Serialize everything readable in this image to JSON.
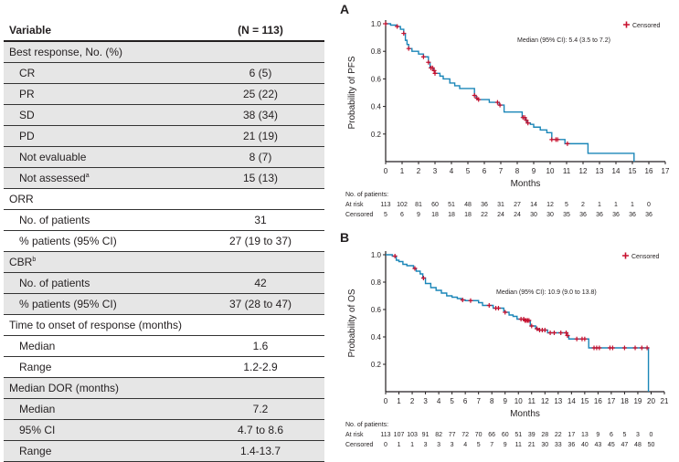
{
  "table": {
    "header": {
      "variable": "Variable",
      "n": "(N = 113)"
    },
    "sections": [
      {
        "label": "Best response, No. (%)",
        "shaded": true,
        "rows": [
          {
            "label": "CR",
            "value": "6 (5)"
          },
          {
            "label": "PR",
            "value": "25 (22)"
          },
          {
            "label": "SD",
            "value": "38 (34)"
          },
          {
            "label": "PD",
            "value": "21 (19)"
          },
          {
            "label": "Not evaluable",
            "value": "8 (7)"
          },
          {
            "label": "Not assessed",
            "sup": "a",
            "value": "15 (13)"
          }
        ]
      },
      {
        "label": "ORR",
        "shaded": false,
        "rows": [
          {
            "label": "No. of patients",
            "value": "31"
          },
          {
            "label": "% patients (95% CI)",
            "value": "27 (19 to 37)"
          }
        ]
      },
      {
        "label": "CBR",
        "sup": "b",
        "shaded": true,
        "rows": [
          {
            "label": "No. of patients",
            "value": "42"
          },
          {
            "label": "% patients (95% CI)",
            "value": "37 (28 to 47)"
          }
        ]
      },
      {
        "label": "Time to onset of response (months)",
        "shaded": false,
        "rows": [
          {
            "label": "Median",
            "value": "1.6"
          },
          {
            "label": "Range",
            "value": "1.2-2.9"
          }
        ]
      },
      {
        "label": "Median DOR (months)",
        "shaded": true,
        "rows": [
          {
            "label": "Median",
            "value": "7.2"
          },
          {
            "label": "95% CI",
            "value": "4.7 to 8.6"
          },
          {
            "label": "Range",
            "value": "1.4-13.7"
          }
        ]
      }
    ]
  },
  "chart_data": [
    {
      "panel": "A",
      "type": "line",
      "step": true,
      "ylabel": "Probability of PFS",
      "xlabel": "Months",
      "xlim": [
        0,
        17
      ],
      "ylim": [
        0,
        1.0
      ],
      "xticks": [
        0,
        1,
        2,
        3,
        4,
        5,
        6,
        7,
        8,
        9,
        10,
        11,
        12,
        13,
        14,
        15,
        16,
        17
      ],
      "yticks": [
        "0.2",
        "0.4",
        "0.6",
        "0.8",
        "1.0"
      ],
      "legend": "Censored",
      "legend_position": "top-right",
      "annotation": "Median (95% CI): 5.4 (3.5 to 7.2)",
      "line_color": "#1a86b8",
      "censor_color": "#c8102e",
      "steps": [
        [
          0,
          1
        ],
        [
          0.3,
          0.99
        ],
        [
          0.7,
          0.98
        ],
        [
          0.9,
          0.96
        ],
        [
          1.1,
          0.93
        ],
        [
          1.2,
          0.88
        ],
        [
          1.3,
          0.85
        ],
        [
          1.4,
          0.82
        ],
        [
          1.6,
          0.8
        ],
        [
          2,
          0.78
        ],
        [
          2.3,
          0.76
        ],
        [
          2.6,
          0.72
        ],
        [
          2.7,
          0.68
        ],
        [
          2.9,
          0.66
        ],
        [
          3,
          0.64
        ],
        [
          3.3,
          0.62
        ],
        [
          3.5,
          0.6
        ],
        [
          3.9,
          0.57
        ],
        [
          4.2,
          0.55
        ],
        [
          4.5,
          0.53
        ],
        [
          5.4,
          0.48
        ],
        [
          5.5,
          0.46
        ],
        [
          5.6,
          0.45
        ],
        [
          6.3,
          0.43
        ],
        [
          6.9,
          0.41
        ],
        [
          7.2,
          0.36
        ],
        [
          8.3,
          0.32
        ],
        [
          8.5,
          0.3
        ],
        [
          8.6,
          0.28
        ],
        [
          8.8,
          0.27
        ],
        [
          9,
          0.25
        ],
        [
          9.4,
          0.23
        ],
        [
          9.8,
          0.21
        ],
        [
          10.1,
          0.16
        ],
        [
          10.9,
          0.13
        ],
        [
          12.3,
          0.06
        ],
        [
          15.1,
          0
        ]
      ],
      "censored": [
        0,
        0.7,
        1.1,
        1.4,
        2.3,
        2.6,
        2.75,
        2.85,
        2.95,
        3.0,
        5.4,
        5.55,
        5.65,
        6.8,
        6.95,
        8.35,
        8.45,
        8.55,
        8.65,
        10.1,
        10.35,
        10.45,
        11.05
      ],
      "risk_label": "No. of patients:",
      "at_risk_label": "At risk",
      "censored_label": "Censored",
      "at_risk": [
        "113",
        "102",
        "81",
        "60",
        "51",
        "48",
        "36",
        "31",
        "27",
        "14",
        "12",
        "5",
        "2",
        "1",
        "1",
        "1",
        "0"
      ],
      "censored_counts": [
        "5",
        "6",
        "9",
        "18",
        "18",
        "18",
        "22",
        "24",
        "24",
        "30",
        "30",
        "35",
        "36",
        "36",
        "36",
        "36",
        "36"
      ]
    },
    {
      "panel": "B",
      "type": "line",
      "step": true,
      "ylabel": "Probability of OS",
      "xlabel": "Months",
      "xlim": [
        0,
        21
      ],
      "ylim": [
        0,
        1.0
      ],
      "xticks": [
        0,
        1,
        2,
        3,
        4,
        5,
        6,
        7,
        8,
        9,
        10,
        11,
        12,
        13,
        14,
        15,
        16,
        17,
        18,
        19,
        20,
        21
      ],
      "yticks": [
        "0.2",
        "0.4",
        "0.6",
        "0.8",
        "1.0"
      ],
      "legend": "Censored",
      "legend_position": "top-right",
      "annotation": "Median (95% CI): 10.9 (9.0 to 13.8)",
      "line_color": "#1a86b8",
      "censor_color": "#c8102e",
      "steps": [
        [
          0,
          1
        ],
        [
          0.5,
          0.99
        ],
        [
          0.8,
          0.96
        ],
        [
          1,
          0.95
        ],
        [
          1.3,
          0.93
        ],
        [
          1.6,
          0.92
        ],
        [
          2.1,
          0.9
        ],
        [
          2.3,
          0.88
        ],
        [
          2.6,
          0.86
        ],
        [
          2.8,
          0.83
        ],
        [
          3,
          0.79
        ],
        [
          3.4,
          0.76
        ],
        [
          3.8,
          0.74
        ],
        [
          4.2,
          0.72
        ],
        [
          4.6,
          0.7
        ],
        [
          5,
          0.69
        ],
        [
          5.4,
          0.68
        ],
        [
          5.7,
          0.67
        ],
        [
          6,
          0.665
        ],
        [
          7,
          0.65
        ],
        [
          7.3,
          0.63
        ],
        [
          8.1,
          0.61
        ],
        [
          8.9,
          0.59
        ],
        [
          9,
          0.58
        ],
        [
          9.3,
          0.56
        ],
        [
          9.6,
          0.55
        ],
        [
          9.9,
          0.53
        ],
        [
          10.5,
          0.52
        ],
        [
          10.9,
          0.48
        ],
        [
          11.3,
          0.46
        ],
        [
          11.5,
          0.45
        ],
        [
          12.2,
          0.43
        ],
        [
          13.7,
          0.41
        ],
        [
          13.8,
          0.385
        ],
        [
          15.3,
          0.32
        ],
        [
          19.8,
          0
        ]
      ],
      "censored": [
        0.7,
        2.2,
        2.85,
        5.8,
        6.4,
        7.8,
        8.3,
        8.5,
        9.0,
        10.2,
        10.4,
        10.5,
        10.6,
        10.7,
        10.8,
        11,
        11.4,
        11.6,
        11.8,
        12,
        12.4,
        12.7,
        13.2,
        13.6,
        13.7,
        14.4,
        14.8,
        15,
        15.7,
        15.9,
        16.1,
        16.9,
        17.1,
        18,
        18.8,
        19.3,
        19.7
      ],
      "risk_label": "No. of patients:",
      "at_risk_label": "At risk",
      "censored_label": "Censored",
      "at_risk": [
        "113",
        "107",
        "103",
        "91",
        "82",
        "77",
        "72",
        "70",
        "66",
        "60",
        "51",
        "39",
        "28",
        "22",
        "17",
        "13",
        "9",
        "6",
        "5",
        "3",
        "0"
      ],
      "censored_counts": [
        "0",
        "1",
        "1",
        "3",
        "3",
        "3",
        "4",
        "5",
        "7",
        "9",
        "11",
        "21",
        "30",
        "33",
        "36",
        "40",
        "43",
        "45",
        "47",
        "48",
        "50"
      ]
    }
  ]
}
